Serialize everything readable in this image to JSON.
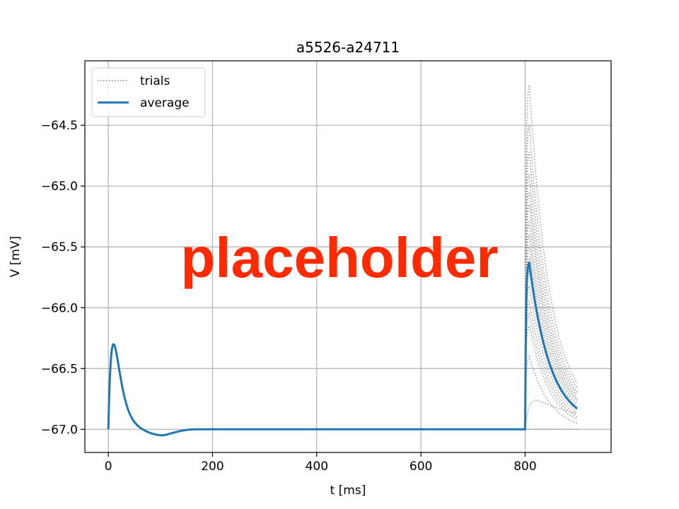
{
  "chart_data": {
    "type": "line",
    "title": "a5526-a24711",
    "xlabel": "t [ms]",
    "ylabel": "V [mV]",
    "xlim": [
      -45,
      965
    ],
    "ylim": [
      -67.19,
      -63.97
    ],
    "xticks": [
      0,
      200,
      400,
      600,
      800
    ],
    "xtick_labels": [
      "0",
      "200",
      "400",
      "600",
      "800"
    ],
    "yticks": [
      -64.5,
      -65.0,
      -65.5,
      -66.0,
      -66.5,
      -67.0
    ],
    "ytick_labels": [
      "−64.5",
      "−65.0",
      "−65.5",
      "−66.0",
      "−66.5",
      "−67.0"
    ],
    "grid": true,
    "legend": {
      "location": "upper-left",
      "entries": [
        {
          "label": "trials",
          "style": "dotted",
          "color": "#808080"
        },
        {
          "label": "average",
          "style": "solid",
          "color": "#1f77b4"
        }
      ]
    },
    "colors": {
      "average": "#1f77b4",
      "trials": "#808080",
      "grid": "#b0b0b0"
    },
    "rest_potential": -67.0,
    "stim_time": 800,
    "t_end": 900,
    "average": {
      "early_peak": {
        "t": 10,
        "v": -66.3
      },
      "trough": {
        "t": 105,
        "v": -67.05
      },
      "late_peak": {
        "t": 808,
        "v": -65.63
      },
      "end_value": -66.83
    },
    "trials_peaks": [
      -64.17,
      -64.5,
      -64.72,
      -64.9,
      -65.05,
      -65.15,
      -65.3,
      -65.4,
      -65.5,
      -65.6,
      -65.7,
      -65.82,
      -65.95,
      -66.05,
      -66.15,
      -66.4,
      -66.75,
      -67.0
    ],
    "trials_end_values": [
      -66.62,
      -66.66,
      -66.69,
      -66.71,
      -66.73,
      -66.75,
      -66.76,
      -66.78,
      -66.8,
      -66.82,
      -66.84,
      -66.86,
      -66.88,
      -66.9,
      -66.92,
      -66.95,
      -66.98,
      -67.0
    ]
  },
  "overlay": {
    "text": "placeholder",
    "color": "#ff2a00"
  }
}
